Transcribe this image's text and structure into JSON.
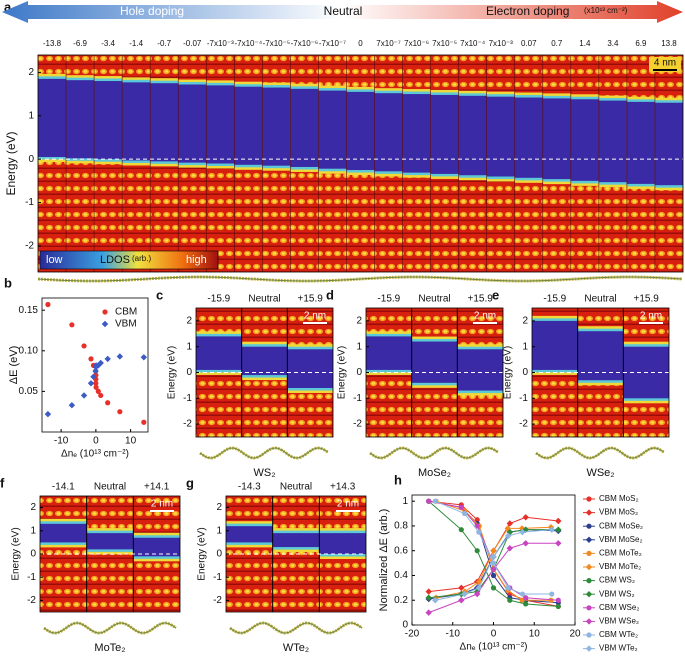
{
  "chart_data": [
    {
      "type": "strips",
      "panel": "a",
      "doping": {
        "hole": "Hole doping",
        "neutral": "Neutral",
        "electron": "Electron doping",
        "unit": "(x10¹³ cm⁻²)"
      },
      "columns": [
        "-13.8",
        "-6.9",
        "-3.4",
        "-1.4",
        "-0.7",
        "-0.07",
        "-7x10⁻³",
        "-7x10⁻⁴",
        "-7x10⁻⁵",
        "-7x10⁻⁶",
        "-7x10⁻⁷",
        "0",
        "7x10⁻⁷",
        "7x10⁻⁶",
        "7x10⁻⁵",
        "7x10⁻⁴",
        "7x10⁻³",
        "0.07",
        "0.7",
        "1.4",
        "3.4",
        "6.9",
        "13.8"
      ],
      "cbm": [
        1.85,
        1.82,
        1.8,
        1.77,
        1.75,
        1.72,
        1.7,
        1.67,
        1.65,
        1.62,
        1.58,
        1.55,
        1.52,
        1.5,
        1.48,
        1.46,
        1.44,
        1.42,
        1.4,
        1.38,
        1.35,
        1.32,
        1.3
      ],
      "vbm": [
        0.05,
        0.02,
        0,
        -0.03,
        -0.05,
        -0.08,
        -0.1,
        -0.13,
        -0.15,
        -0.18,
        -0.22,
        -0.25,
        -0.28,
        -0.31,
        -0.34,
        -0.37,
        -0.4,
        -0.43,
        -0.46,
        -0.5,
        -0.53,
        -0.57,
        -0.6
      ],
      "ylabel": "Energy (eV)",
      "ylim": [
        -2.6,
        2.4
      ],
      "yticks": [
        -2,
        -1,
        0,
        1,
        2
      ],
      "scalebar": "4 nm",
      "colorbar": {
        "low": "low",
        "title": "LDOS",
        "unit": "(arb.)",
        "high": "high"
      }
    },
    {
      "type": "scatter",
      "panel": "b",
      "ylabel": "ΔE (eV)",
      "xlabel": "Δnₑ (10¹³ cm⁻²)",
      "xlim": [
        -15.5,
        15
      ],
      "xticks": [
        -10,
        0,
        10
      ],
      "ylim": [
        0,
        0.165
      ],
      "yticks": [
        0.05,
        {
          "value": 0.1,
          "label": "0.10"
        },
        0.15
      ],
      "series": [
        {
          "name": "CBM",
          "color": "#e8302a",
          "marker": "circle",
          "x": [
            -13.8,
            -6.9,
            -3.4,
            -1.4,
            -0.7,
            -0.07,
            0,
            0,
            0,
            0.07,
            0.7,
            1.4,
            3.4,
            6.9,
            13.8
          ],
          "values": [
            0.157,
            0.132,
            0.106,
            0.09,
            0.082,
            0.075,
            0.07,
            0.065,
            0.06,
            0.055,
            0.05,
            0.045,
            0.036,
            0.025,
            0.012
          ]
        },
        {
          "name": "VBM",
          "color": "#3c5bc4",
          "marker": "diamond",
          "x": [
            -13.8,
            -6.9,
            -3.4,
            -1.4,
            -0.7,
            -0.07,
            0,
            0.07,
            0.7,
            1.4,
            3.4,
            6.9,
            13.8
          ],
          "values": [
            0.022,
            0.033,
            0.045,
            0.06,
            0.068,
            0.075,
            0.08,
            0.082,
            0.082,
            0.085,
            0.09,
            0.093,
            0.092
          ]
        }
      ]
    },
    {
      "type": "strips",
      "panel": "c",
      "columns": [
        "-15.9",
        "Neutral",
        "+15.9"
      ],
      "cbm": [
        1.4,
        1.0,
        0.9
      ],
      "vbm": [
        0.1,
        -0.1,
        -0.6
      ],
      "ylabel": "Energy (eV)",
      "ylim": [
        -2.5,
        2.5
      ],
      "yticks": [
        -2,
        -1,
        0,
        1,
        2
      ],
      "scalebar": "2 nm",
      "material": "WS₂"
    },
    {
      "type": "strips",
      "panel": "d",
      "columns": [
        "-15.9",
        "Neutral",
        "+15.9"
      ],
      "cbm": [
        1.4,
        1.2,
        0.9
      ],
      "vbm": [
        0.1,
        -0.4,
        -0.7
      ],
      "ylabel": "Energy (eV)",
      "ylim": [
        -2.5,
        2.5
      ],
      "yticks": [
        -2,
        -1,
        0,
        1,
        2
      ],
      "scalebar": "2 nm",
      "material": "MoSe₂"
    },
    {
      "type": "strips",
      "panel": "e",
      "columns": [
        "-15.9",
        "Neutral",
        "+15.9"
      ],
      "cbm": [
        2.0,
        1.6,
        1.0
      ],
      "vbm": [
        0.1,
        -0.3,
        -1.0
      ],
      "ylabel": "Energy (eV)",
      "ylim": [
        -2.5,
        2.5
      ],
      "yticks": [
        -2,
        -1,
        0,
        1,
        2
      ],
      "scalebar": "2 nm",
      "material": "WSe₂"
    },
    {
      "type": "strips",
      "panel": "f",
      "columns": [
        "-14.1",
        "Neutral",
        "+14.1"
      ],
      "cbm": [
        1.3,
        0.9,
        0.7
      ],
      "vbm": [
        0.5,
        0.2,
        -0.1
      ],
      "ylabel": "Energy (eV)",
      "ylim": [
        -2.5,
        2.5
      ],
      "yticks": [
        -2,
        -1,
        0,
        1,
        2
      ],
      "scalebar": "2 nm",
      "material": "MoTe₂"
    },
    {
      "type": "strips",
      "panel": "g",
      "columns": [
        "-14.3",
        "Neutral",
        "+14.3"
      ],
      "cbm": [
        1.2,
        0.9,
        0.9
      ],
      "vbm": [
        0.5,
        0.3,
        0.0
      ],
      "ylabel": "Energy (eV)",
      "ylim": [
        -2.5,
        2.5
      ],
      "yticks": [
        -2,
        -1,
        0,
        1,
        2
      ],
      "scalebar": "2 nm",
      "material": "WTe₂"
    },
    {
      "type": "line",
      "panel": "h",
      "ylabel": "Normalized ΔE (arb.)",
      "xlabel": "Δnₑ (10¹³ cm⁻²)",
      "xlim": [
        -20,
        20
      ],
      "xticks": [
        -20,
        -10,
        0,
        10,
        20
      ],
      "ylim": [
        0,
        1.05
      ],
      "yticks": [
        0,
        0.2,
        0.4,
        0.6,
        0.8,
        1
      ],
      "series": [
        {
          "name": "CBM MoS₂",
          "color": "#e8302a",
          "marker": "circle",
          "x": [
            -15.9,
            -7.9,
            -4,
            0,
            4,
            7.9,
            15.9
          ],
          "values": [
            1,
            0.97,
            0.85,
            0.45,
            0.25,
            0.2,
            0.15
          ]
        },
        {
          "name": "VBM MoS₂",
          "color": "#e8302a",
          "marker": "diamond",
          "x": [
            -15.9,
            -7.9,
            -4,
            0,
            4,
            7.9,
            15.9
          ],
          "values": [
            0.27,
            0.3,
            0.35,
            0.6,
            0.82,
            0.87,
            0.84
          ]
        },
        {
          "name": "CBM MoSe₂",
          "color": "#2c3f8f",
          "marker": "circle",
          "x": [
            -15.9,
            -7.9,
            -4,
            0,
            4,
            7.9,
            15.9
          ],
          "values": [
            1,
            0.95,
            0.82,
            0.4,
            0.22,
            0.2,
            0.18
          ]
        },
        {
          "name": "VBM MoSe₂",
          "color": "#2c3f8f",
          "marker": "diamond",
          "x": [
            -15.9,
            -7.9,
            -4,
            0,
            4,
            7.9,
            15.9
          ],
          "values": [
            0.21,
            0.25,
            0.3,
            0.55,
            0.75,
            0.77,
            0.76
          ]
        },
        {
          "name": "CBM MoTe₂",
          "color": "#f28a1e",
          "marker": "circle",
          "x": [
            -14.1,
            -7,
            -3.5,
            0,
            3.5,
            7,
            14.1
          ],
          "values": [
            1,
            0.92,
            0.8,
            0.45,
            0.28,
            0.2,
            0.2
          ]
        },
        {
          "name": "VBM MoTe₂",
          "color": "#f28a1e",
          "marker": "diamond",
          "x": [
            -14.1,
            -7,
            -3.5,
            0,
            3.5,
            7,
            14.1
          ],
          "values": [
            0.22,
            0.27,
            0.35,
            0.6,
            0.78,
            0.78,
            0.79
          ]
        },
        {
          "name": "CBM WS₂",
          "color": "#2e8b3a",
          "marker": "circle",
          "x": [
            -15.9,
            -7.9,
            -4,
            0,
            4,
            7.9,
            15.9
          ],
          "values": [
            1,
            0.77,
            0.6,
            0.3,
            0.2,
            0.17,
            0.15
          ]
        },
        {
          "name": "VBM WS₂",
          "color": "#2e8b3a",
          "marker": "diamond",
          "x": [
            -15.9,
            -7.9,
            -4,
            0,
            4,
            7.9,
            15.9
          ],
          "values": [
            0.22,
            0.25,
            0.27,
            0.45,
            0.75,
            0.77,
            0.77
          ]
        },
        {
          "name": "CBM WSe₂",
          "color": "#c845c0",
          "marker": "circle",
          "x": [
            -15.9,
            -7.9,
            -4,
            0,
            4,
            7.9,
            15.9
          ],
          "values": [
            1,
            0.95,
            0.8,
            0.5,
            0.3,
            0.22,
            0.2
          ]
        },
        {
          "name": "VBM WSe₂",
          "color": "#c845c0",
          "marker": "diamond",
          "x": [
            -15.9,
            -7.9,
            -4,
            0,
            4,
            7.9,
            15.9
          ],
          "values": [
            0.1,
            0.2,
            0.25,
            0.45,
            0.62,
            0.66,
            0.66
          ]
        },
        {
          "name": "CBM WTe₂",
          "color": "#8fb6e0",
          "marker": "circle",
          "x": [
            -14.3,
            -7.1,
            -3.6,
            0,
            3.6,
            7.1,
            14.3
          ],
          "values": [
            1,
            0.9,
            0.75,
            0.5,
            0.3,
            0.25,
            0.25
          ]
        },
        {
          "name": "VBM WTe₂",
          "color": "#8fb6e0",
          "marker": "diamond",
          "x": [
            -14.3,
            -7.1,
            -3.6,
            0,
            3.6,
            7.1,
            14.3
          ],
          "values": [
            0.2,
            0.25,
            0.3,
            0.55,
            0.72,
            0.75,
            0.77
          ]
        }
      ]
    }
  ]
}
